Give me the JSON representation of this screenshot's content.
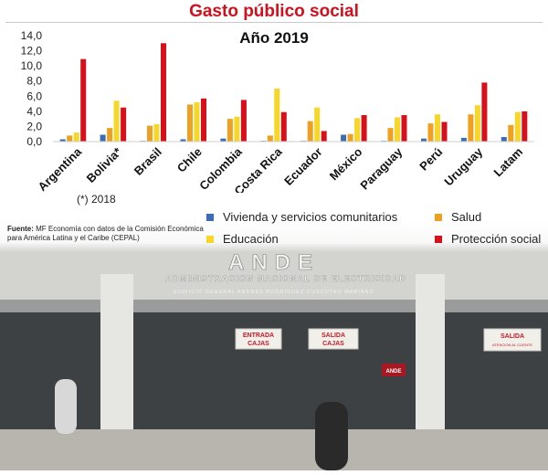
{
  "header": {
    "title": "Gasto público social"
  },
  "chart_data": {
    "type": "bar",
    "title": "Año 2019",
    "categories": [
      "Argentina",
      "Bolivia*",
      "Brasil",
      "Chile",
      "Colombia",
      "Costa Rica",
      "Ecuador",
      "México",
      "Paraguay",
      "Perú",
      "Uruguay",
      "Latam"
    ],
    "y_ticks": [
      "0,0",
      "2,0",
      "4,0",
      "6,0",
      "8,0",
      "10,0",
      "12,0",
      "14,0"
    ],
    "ylim": [
      0,
      14
    ],
    "series": [
      {
        "name": "Vivienda y servicios comunitarios",
        "color": "#3a6db5",
        "values": [
          0.3,
          0.9,
          0.1,
          0.3,
          0.4,
          0.1,
          0.1,
          0.9,
          0.1,
          0.4,
          0.5,
          0.6
        ]
      },
      {
        "name": "Salud",
        "color": "#f0a020",
        "values": [
          0.8,
          1.8,
          2.1,
          4.9,
          3.0,
          0.8,
          2.7,
          1.0,
          1.8,
          2.4,
          3.6,
          2.2
        ]
      },
      {
        "name": "Educación",
        "color": "#f6d628",
        "values": [
          1.2,
          5.4,
          2.3,
          5.2,
          3.3,
          7.0,
          4.5,
          3.1,
          3.2,
          3.6,
          4.8,
          3.9
        ]
      },
      {
        "name": "Protección social",
        "color": "#d8101c",
        "values": [
          10.9,
          4.5,
          13.0,
          5.7,
          5.5,
          3.9,
          1.4,
          3.5,
          3.5,
          2.6,
          7.8,
          4.0
        ]
      }
    ],
    "legend_order": [
      0,
      1,
      2,
      3
    ],
    "legend_placement": "bottom",
    "footnote": "(*) 2018"
  },
  "source": {
    "label": "Fuente:",
    "text": "MF Economía con datos de la Comisión Económica para América Latina y el Caribe (CEPAL)"
  },
  "photo": {
    "building_sign": "ANDE",
    "building_subtitle": "ADMINISTRACION NACIONAL DE ELECTRICIDAD",
    "building_address": "EDIFICIO GENERAL ANDRÉS RODRÍGUEZ-CUSCUTAO MARIANO",
    "signs": [
      {
        "line1": "ENTRADA",
        "line2": "CAJAS"
      },
      {
        "line1": "SALIDA",
        "line2": "CAJAS"
      },
      {
        "line1": "SALIDA",
        "line2": "ATENCION AL CLIENTE"
      }
    ],
    "small_sign": "ANDE"
  }
}
